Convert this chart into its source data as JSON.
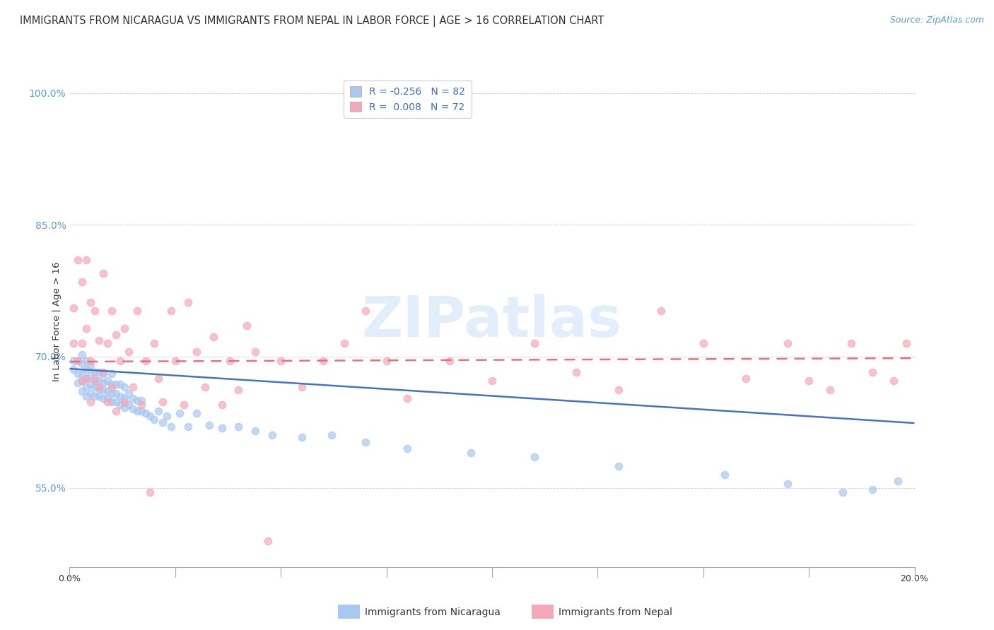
{
  "title": "IMMIGRANTS FROM NICARAGUA VS IMMIGRANTS FROM NEPAL IN LABOR FORCE | AGE > 16 CORRELATION CHART",
  "source": "Source: ZipAtlas.com",
  "ylabel": "In Labor Force | Age > 16",
  "xlim": [
    0.0,
    0.2
  ],
  "ylim": [
    0.46,
    1.02
  ],
  "yticks": [
    0.55,
    0.7,
    0.85,
    1.0
  ],
  "ytick_labels": [
    "55.0%",
    "70.0%",
    "85.0%",
    "100.0%"
  ],
  "xticks": [
    0.0,
    0.025,
    0.05,
    0.075,
    0.1,
    0.125,
    0.15,
    0.175,
    0.2
  ],
  "xtick_labels": [
    "0.0%",
    "",
    "",
    "",
    "",
    "",
    "",
    "",
    "20.0%"
  ],
  "watermark": "ZIPatlas",
  "nicaragua_color": "#a8c8f0",
  "nepal_color": "#f5a8b8",
  "nicaragua_line_color": "#4472c4",
  "nepal_line_color": "#e8707a",
  "background_color": "#ffffff",
  "nicaragua_x": [
    0.001,
    0.001,
    0.002,
    0.002,
    0.002,
    0.003,
    0.003,
    0.003,
    0.003,
    0.003,
    0.004,
    0.004,
    0.004,
    0.004,
    0.004,
    0.005,
    0.005,
    0.005,
    0.005,
    0.006,
    0.006,
    0.006,
    0.006,
    0.007,
    0.007,
    0.007,
    0.007,
    0.008,
    0.008,
    0.008,
    0.008,
    0.009,
    0.009,
    0.009,
    0.01,
    0.01,
    0.01,
    0.01,
    0.011,
    0.011,
    0.011,
    0.012,
    0.012,
    0.012,
    0.013,
    0.013,
    0.013,
    0.014,
    0.014,
    0.015,
    0.015,
    0.016,
    0.016,
    0.017,
    0.017,
    0.018,
    0.019,
    0.02,
    0.021,
    0.022,
    0.023,
    0.024,
    0.026,
    0.028,
    0.03,
    0.033,
    0.036,
    0.04,
    0.044,
    0.048,
    0.055,
    0.062,
    0.07,
    0.08,
    0.095,
    0.11,
    0.13,
    0.155,
    0.17,
    0.183,
    0.19,
    0.196
  ],
  "nicaragua_y": [
    0.685,
    0.695,
    0.67,
    0.68,
    0.695,
    0.66,
    0.672,
    0.68,
    0.692,
    0.702,
    0.655,
    0.665,
    0.675,
    0.685,
    0.695,
    0.658,
    0.668,
    0.678,
    0.69,
    0.655,
    0.665,
    0.672,
    0.682,
    0.655,
    0.663,
    0.672,
    0.682,
    0.652,
    0.662,
    0.67,
    0.68,
    0.652,
    0.66,
    0.672,
    0.648,
    0.658,
    0.668,
    0.68,
    0.648,
    0.658,
    0.668,
    0.645,
    0.655,
    0.668,
    0.642,
    0.652,
    0.665,
    0.645,
    0.658,
    0.64,
    0.652,
    0.638,
    0.65,
    0.638,
    0.65,
    0.635,
    0.632,
    0.628,
    0.638,
    0.625,
    0.632,
    0.62,
    0.635,
    0.62,
    0.635,
    0.622,
    0.618,
    0.62,
    0.615,
    0.61,
    0.608,
    0.61,
    0.602,
    0.595,
    0.59,
    0.585,
    0.575,
    0.565,
    0.555,
    0.545,
    0.548,
    0.558
  ],
  "nepal_x": [
    0.001,
    0.001,
    0.002,
    0.002,
    0.003,
    0.003,
    0.003,
    0.004,
    0.004,
    0.004,
    0.005,
    0.005,
    0.005,
    0.006,
    0.006,
    0.007,
    0.007,
    0.008,
    0.008,
    0.009,
    0.009,
    0.01,
    0.01,
    0.011,
    0.011,
    0.012,
    0.013,
    0.013,
    0.014,
    0.015,
    0.016,
    0.017,
    0.018,
    0.019,
    0.02,
    0.021,
    0.022,
    0.024,
    0.025,
    0.027,
    0.028,
    0.03,
    0.032,
    0.034,
    0.036,
    0.038,
    0.04,
    0.042,
    0.044,
    0.047,
    0.05,
    0.055,
    0.06,
    0.065,
    0.07,
    0.075,
    0.08,
    0.09,
    0.1,
    0.11,
    0.12,
    0.13,
    0.14,
    0.15,
    0.16,
    0.17,
    0.175,
    0.18,
    0.185,
    0.19,
    0.195,
    0.198
  ],
  "nepal_y": [
    0.715,
    0.755,
    0.695,
    0.81,
    0.672,
    0.715,
    0.785,
    0.675,
    0.732,
    0.81,
    0.648,
    0.695,
    0.762,
    0.675,
    0.752,
    0.665,
    0.718,
    0.682,
    0.795,
    0.648,
    0.715,
    0.665,
    0.752,
    0.638,
    0.725,
    0.695,
    0.648,
    0.732,
    0.705,
    0.665,
    0.752,
    0.645,
    0.695,
    0.545,
    0.715,
    0.675,
    0.648,
    0.752,
    0.695,
    0.645,
    0.762,
    0.705,
    0.665,
    0.722,
    0.645,
    0.695,
    0.662,
    0.735,
    0.705,
    0.49,
    0.695,
    0.665,
    0.695,
    0.715,
    0.752,
    0.695,
    0.652,
    0.695,
    0.672,
    0.715,
    0.682,
    0.662,
    0.752,
    0.715,
    0.675,
    0.715,
    0.672,
    0.662,
    0.715,
    0.682,
    0.672,
    0.715
  ],
  "title_fontsize": 10.5,
  "axis_label_fontsize": 9.5,
  "tick_fontsize": 9,
  "legend_fontsize": 10,
  "source_fontsize": 9,
  "marker_size": 55,
  "line_width": 1.8
}
